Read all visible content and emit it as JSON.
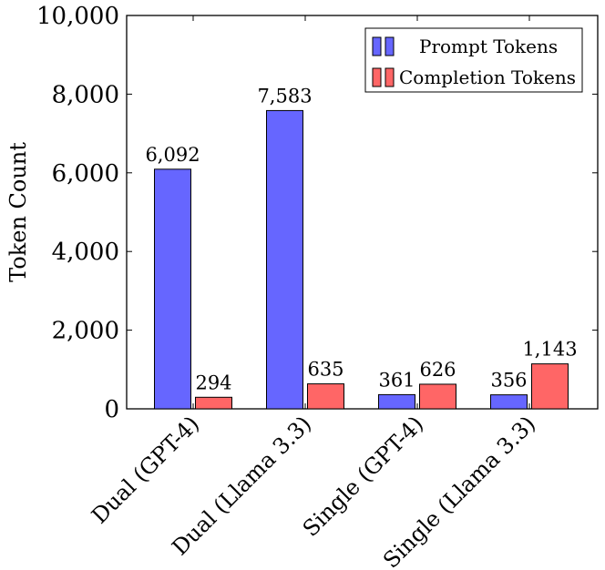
{
  "chart_data": {
    "type": "bar",
    "ylabel": "Token Count",
    "ylim": [
      0,
      10000
    ],
    "yticks": [
      {
        "value": 0,
        "label": "0"
      },
      {
        "value": 2000,
        "label": "2,000"
      },
      {
        "value": 4000,
        "label": "4,000"
      },
      {
        "value": 6000,
        "label": "6,000"
      },
      {
        "value": 8000,
        "label": "8,000"
      },
      {
        "value": 10000,
        "label": "10,000"
      }
    ],
    "categories": [
      "Dual (GPT-4)",
      "Dual (Llama 3.3)",
      "Single (GPT-4)",
      "Single (Llama 3.3)"
    ],
    "series": [
      {
        "name": "Prompt Tokens",
        "color": "#6666ff",
        "values": [
          6092,
          7583,
          361,
          356
        ],
        "labels": [
          "6,092",
          "7,583",
          "361",
          "356"
        ]
      },
      {
        "name": "Completion Tokens",
        "color": "#ff6666",
        "values": [
          294,
          635,
          626,
          1143
        ],
        "labels": [
          "294",
          "635",
          "626",
          "1,143"
        ]
      }
    ],
    "legend_position": "top-right",
    "grid": false
  }
}
